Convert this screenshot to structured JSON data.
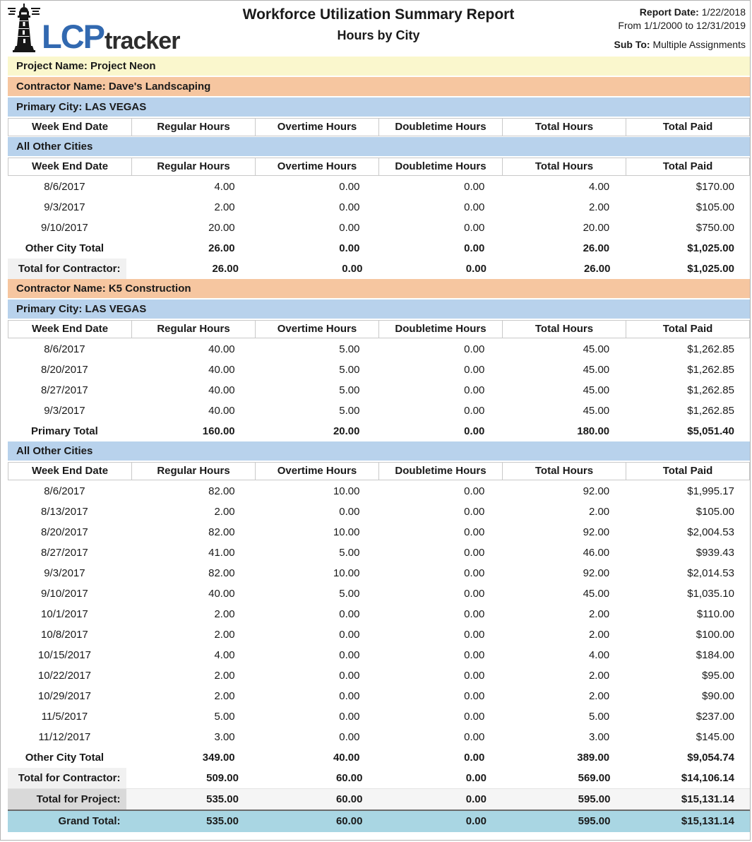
{
  "header": {
    "logo_lcp": "LCP",
    "logo_tracker": "tracker",
    "title": "Workforce Utilization Summary Report",
    "subtitle": "Hours by City",
    "report_date_label": "Report Date:",
    "report_date": "1/22/2018",
    "date_range": "From 1/1/2000 to 12/31/2019",
    "sub_to_label": "Sub To:",
    "sub_to": "Multiple Assignments"
  },
  "colors": {
    "logo_blue": "#3269b0",
    "logo_dark": "#2d2d2d",
    "project_band": "#faf7cd",
    "contractor_band": "#f6c6a0",
    "city_band": "#b8d2ec",
    "grand_total_band": "#a9d6e3",
    "contractor_total_cell": "#f1f1f1",
    "project_total_cell": "#d9d9d9"
  },
  "columns": [
    "Week End Date",
    "Regular Hours",
    "Overtime Hours",
    "Doubletime Hours",
    "Total Hours",
    "Total Paid"
  ],
  "blocks": [
    {
      "type": "band",
      "style": "project",
      "text": "Project Name: Project Neon"
    },
    {
      "type": "band",
      "style": "contractor",
      "text": "Contractor Name: Dave's Landscaping"
    },
    {
      "type": "band",
      "style": "city",
      "text": "Primary City: LAS VEGAS"
    },
    {
      "type": "colheader"
    },
    {
      "type": "band",
      "style": "city",
      "text": "All Other Cities"
    },
    {
      "type": "colheader"
    },
    {
      "type": "row",
      "cells": [
        "8/6/2017",
        "4.00",
        "0.00",
        "0.00",
        "4.00",
        "$170.00"
      ]
    },
    {
      "type": "row",
      "cells": [
        "9/3/2017",
        "2.00",
        "0.00",
        "0.00",
        "2.00",
        "$105.00"
      ]
    },
    {
      "type": "row",
      "cells": [
        "9/10/2017",
        "20.00",
        "0.00",
        "0.00",
        "20.00",
        "$750.00"
      ]
    },
    {
      "type": "total",
      "style": "subtotal",
      "cells": [
        "Other City Total",
        "26.00",
        "0.00",
        "0.00",
        "26.00",
        "$1,025.00"
      ]
    },
    {
      "type": "total",
      "style": "contractor-total",
      "cells": [
        "Total for Contractor:",
        "26.00",
        "0.00",
        "0.00",
        "26.00",
        "$1,025.00"
      ]
    },
    {
      "type": "band",
      "style": "contractor",
      "text": "Contractor Name: K5 Construction"
    },
    {
      "type": "band",
      "style": "city",
      "text": "Primary City: LAS VEGAS"
    },
    {
      "type": "colheader"
    },
    {
      "type": "row",
      "cells": [
        "8/6/2017",
        "40.00",
        "5.00",
        "0.00",
        "45.00",
        "$1,262.85"
      ]
    },
    {
      "type": "row",
      "cells": [
        "8/20/2017",
        "40.00",
        "5.00",
        "0.00",
        "45.00",
        "$1,262.85"
      ]
    },
    {
      "type": "row",
      "cells": [
        "8/27/2017",
        "40.00",
        "5.00",
        "0.00",
        "45.00",
        "$1,262.85"
      ]
    },
    {
      "type": "row",
      "cells": [
        "9/3/2017",
        "40.00",
        "5.00",
        "0.00",
        "45.00",
        "$1,262.85"
      ]
    },
    {
      "type": "total",
      "style": "subtotal",
      "cells": [
        "Primary Total",
        "160.00",
        "20.00",
        "0.00",
        "180.00",
        "$5,051.40"
      ]
    },
    {
      "type": "band",
      "style": "city",
      "text": "All Other Cities"
    },
    {
      "type": "colheader"
    },
    {
      "type": "row",
      "cells": [
        "8/6/2017",
        "82.00",
        "10.00",
        "0.00",
        "92.00",
        "$1,995.17"
      ]
    },
    {
      "type": "row",
      "cells": [
        "8/13/2017",
        "2.00",
        "0.00",
        "0.00",
        "2.00",
        "$105.00"
      ]
    },
    {
      "type": "row",
      "cells": [
        "8/20/2017",
        "82.00",
        "10.00",
        "0.00",
        "92.00",
        "$2,004.53"
      ]
    },
    {
      "type": "row",
      "cells": [
        "8/27/2017",
        "41.00",
        "5.00",
        "0.00",
        "46.00",
        "$939.43"
      ]
    },
    {
      "type": "row",
      "cells": [
        "9/3/2017",
        "82.00",
        "10.00",
        "0.00",
        "92.00",
        "$2,014.53"
      ]
    },
    {
      "type": "row",
      "cells": [
        "9/10/2017",
        "40.00",
        "5.00",
        "0.00",
        "45.00",
        "$1,035.10"
      ]
    },
    {
      "type": "row",
      "cells": [
        "10/1/2017",
        "2.00",
        "0.00",
        "0.00",
        "2.00",
        "$110.00"
      ]
    },
    {
      "type": "row",
      "cells": [
        "10/8/2017",
        "2.00",
        "0.00",
        "0.00",
        "2.00",
        "$100.00"
      ]
    },
    {
      "type": "row",
      "cells": [
        "10/15/2017",
        "4.00",
        "0.00",
        "0.00",
        "4.00",
        "$184.00"
      ]
    },
    {
      "type": "row",
      "cells": [
        "10/22/2017",
        "2.00",
        "0.00",
        "0.00",
        "2.00",
        "$95.00"
      ]
    },
    {
      "type": "row",
      "cells": [
        "10/29/2017",
        "2.00",
        "0.00",
        "0.00",
        "2.00",
        "$90.00"
      ]
    },
    {
      "type": "row",
      "cells": [
        "11/5/2017",
        "5.00",
        "0.00",
        "0.00",
        "5.00",
        "$237.00"
      ]
    },
    {
      "type": "row",
      "cells": [
        "11/12/2017",
        "3.00",
        "0.00",
        "0.00",
        "3.00",
        "$145.00"
      ]
    },
    {
      "type": "total",
      "style": "subtotal",
      "cells": [
        "Other City Total",
        "349.00",
        "40.00",
        "0.00",
        "389.00",
        "$9,054.74"
      ]
    },
    {
      "type": "total",
      "style": "contractor-total",
      "cells": [
        "Total for Contractor:",
        "509.00",
        "60.00",
        "0.00",
        "569.00",
        "$14,106.14"
      ]
    },
    {
      "type": "total",
      "style": "project-total",
      "cells": [
        "Total for Project:",
        "535.00",
        "60.00",
        "0.00",
        "595.00",
        "$15,131.14"
      ]
    },
    {
      "type": "total",
      "style": "grand-total",
      "cells": [
        "Grand Total:",
        "535.00",
        "60.00",
        "0.00",
        "595.00",
        "$15,131.14"
      ]
    }
  ]
}
